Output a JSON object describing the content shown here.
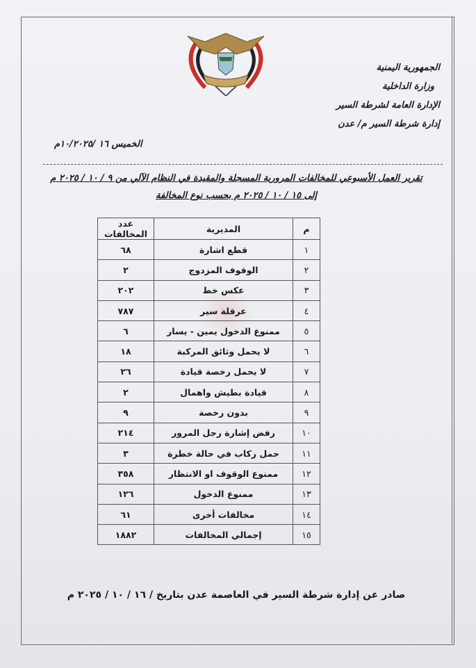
{
  "header": {
    "country": "الجمهورية اليمنية",
    "ministry": "وزارة الداخلية",
    "directorate": "الإدارة العامة لشرطة السير",
    "department": "إدارة شرطة السير م/ عدن",
    "date": "الخميس ١٦ /١٠/٢٠٢٥م",
    "emblem": "Yemen national emblem (eagle)"
  },
  "report": {
    "title": "تقرير العمل الأسبوعي للمخالفات المرورية المسجلة والمقيدة في النظام الآلي من ٩ / ١٠ / ٢٠٢٥ م",
    "subtitle": "إلى ١٥ / ١٠ / ٢٠٢٥ م بحسب نوع المخالفة"
  },
  "table": {
    "headers": [
      "م",
      "المديرية",
      "عدد المخالفات"
    ],
    "rows": [
      [
        "١",
        "قطع اشارة",
        "٦٨"
      ],
      [
        "٢",
        "الوقوف المزدوج",
        "٢"
      ],
      [
        "٣",
        "عكس خط",
        "٢٠٢"
      ],
      [
        "٤",
        "عرقلة سير",
        "٧٨٧"
      ],
      [
        "٥",
        "ممنوع الدخول يمين - يسار",
        "٦"
      ],
      [
        "٦",
        "لا يحمل وثائق المركبة",
        "١٨"
      ],
      [
        "٧",
        "لا يحمل رخصة قيادة",
        "٢٦"
      ],
      [
        "٨",
        "قيادة بطيش واهمال",
        "٢"
      ],
      [
        "٩",
        "بدون رخصة",
        "٩"
      ],
      [
        "١٠",
        "رفض إشارة رجل المرور",
        "٢١٤"
      ],
      [
        "١١",
        "حمل ركاب في حالة خطرة",
        "٣"
      ],
      [
        "١٢",
        "ممنوع الوقوف او الانتظار",
        "٣٥٨"
      ],
      [
        "١٣",
        "ممنوع الدخول",
        "١٢٦"
      ],
      [
        "١٤",
        "مخالفات أخرى",
        "٦١"
      ],
      [
        "١٥",
        "إجمالي المخالفات",
        "١٨٨٢"
      ]
    ]
  },
  "footer": "صادر عن إدارة شرطة السير في العاصمة عدن بتاريخ / ١٦ / ١٠ / ٢٠٢٥ م",
  "colors": {
    "emblem_gold": "#b08a4a",
    "emblem_red": "#c8302c",
    "text": "#1a1a1a"
  }
}
